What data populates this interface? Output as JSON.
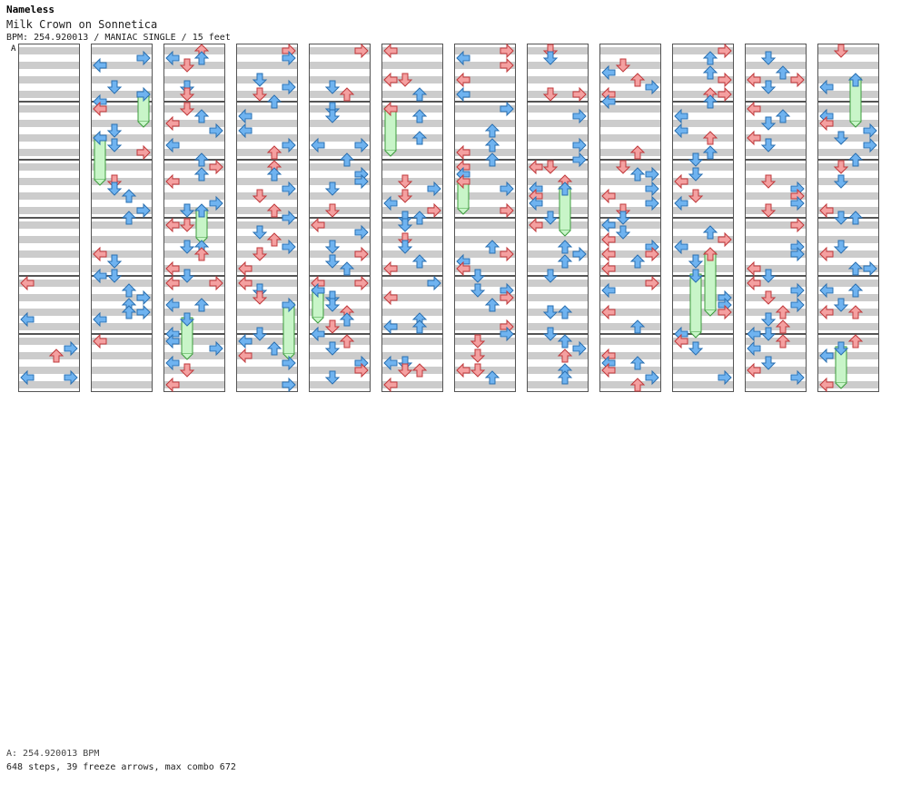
{
  "header": {
    "author": "Nameless",
    "song_title": "Milk Crown on Sonnetica",
    "info_line": "BPM: 254.920013 / MANIAC SINGLE / 15 feet"
  },
  "footer": {
    "bpm_line": "A: 254.920013 BPM",
    "stats_line": "648 steps, 39 freeze arrows, max combo 672"
  },
  "chart_data": {
    "type": "step-chart",
    "columns": 12,
    "measures_per_column": 6,
    "lanes": [
      "left",
      "down",
      "up",
      "right"
    ],
    "segment_label": "A",
    "colors": {
      "stripe": "#cccccc",
      "on_beat_arrow": "#f4a0a0",
      "off_beat_arrow": "#6fb3f0",
      "freeze": "#c8f5c8"
    }
  }
}
